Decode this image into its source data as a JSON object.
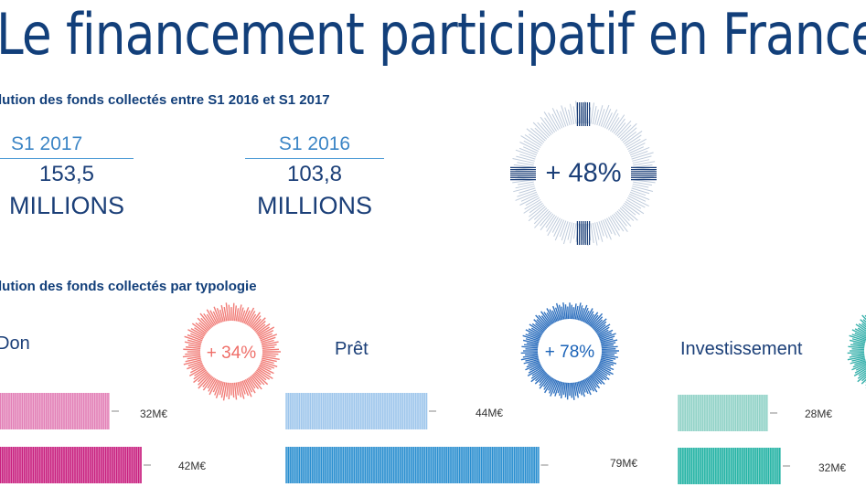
{
  "title": "Le financement participatif en France",
  "section1": {
    "title": "lution des fonds collectés entre S1 2016 et S1 2017"
  },
  "stats": [
    {
      "period": "S1 2017",
      "value": "153,5",
      "unit": "MILLIONS"
    },
    {
      "period": "S1 2016",
      "value": "103,8",
      "unit": "MILLIONS"
    }
  ],
  "total_growth": {
    "label": "+ 48%",
    "color": "#1b3f78"
  },
  "section2": {
    "title": "lution des fonds collectés par typologie"
  },
  "chart_data": {
    "type": "bar",
    "categories": [
      "Don",
      "Prêt",
      "Investissement"
    ],
    "series": [
      {
        "name": "S1 2016",
        "values": [
          32,
          44,
          28
        ]
      },
      {
        "name": "S1 2017",
        "values": [
          42,
          79,
          32
        ]
      }
    ],
    "unit": "M€",
    "value_labels": [
      [
        "32M€",
        "42M€"
      ],
      [
        "44M€",
        "79M€"
      ],
      [
        "28M€",
        "32M€"
      ]
    ],
    "growth_labels": [
      "+ 34%",
      "+ 78%",
      ""
    ],
    "colors": [
      {
        "light": "#e27fb6",
        "dark": "#c81f7f",
        "ring": "#ef6f69"
      },
      {
        "light": "#9ec6ec",
        "dark": "#2b8fd0",
        "ring": "#1b63b8"
      },
      {
        "light": "#8fd1c6",
        "dark": "#22b2a4",
        "ring": "#22a9a3"
      }
    ]
  }
}
